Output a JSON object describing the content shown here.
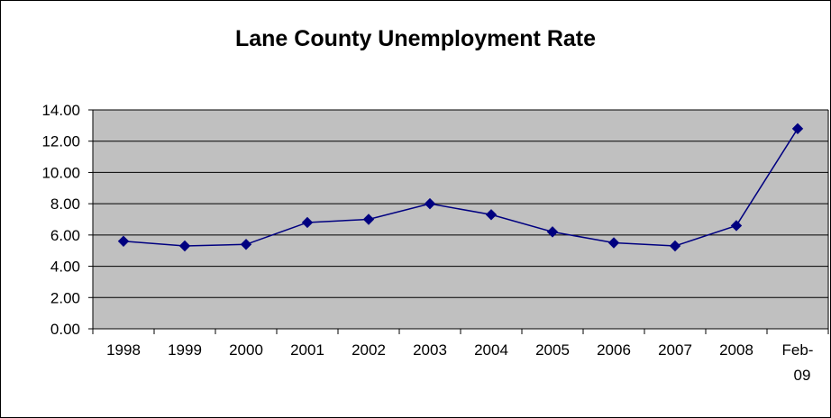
{
  "chart_data": {
    "type": "line",
    "title": "Lane County Unemployment Rate",
    "categories": [
      "1998",
      "1999",
      "2000",
      "2001",
      "2002",
      "2003",
      "2004",
      "2005",
      "2006",
      "2007",
      "2008",
      "Feb-09"
    ],
    "series": [
      {
        "values": [
          5.6,
          5.3,
          5.4,
          6.8,
          7.0,
          8.0,
          7.3,
          6.2,
          5.5,
          5.3,
          6.6,
          12.8
        ]
      }
    ],
    "y_ticks": [
      "0.00",
      "2.00",
      "4.00",
      "6.00",
      "8.00",
      "10.00",
      "12.00",
      "14.00"
    ],
    "ylim": [
      0,
      14
    ],
    "grid": true,
    "legend": "none",
    "colors": {
      "plot_background": "#c0c0c0",
      "gridline": "#000000",
      "series_line": "#000080",
      "marker": "#000080"
    }
  }
}
